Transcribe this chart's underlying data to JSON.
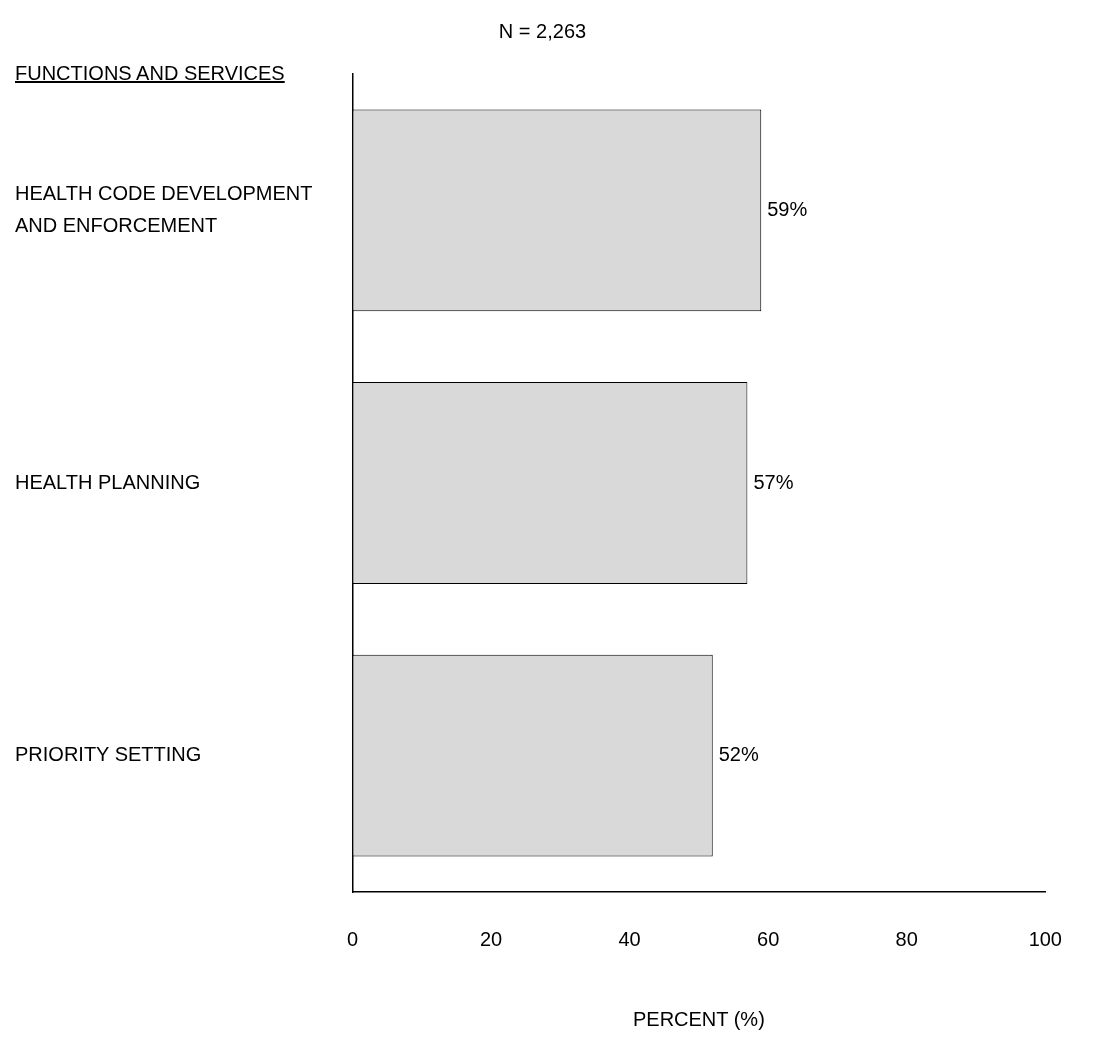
{
  "chart_data": {
    "type": "bar",
    "orientation": "horizontal",
    "title": "N = 2,263",
    "ylabel": "FUNCTIONS AND SERVICES",
    "xlabel": "PERCENT (%)",
    "categories": [
      "HEALTH CODE DEVELOPMENT AND ENFORCEMENT",
      "HEALTH PLANNING",
      "PRIORITY SETTING"
    ],
    "values": [
      59,
      57,
      52
    ],
    "value_labels": [
      "59%",
      "57%",
      "52%"
    ],
    "color": "#d9d9d9",
    "xlim": [
      0,
      100
    ],
    "xticks": [
      0,
      20,
      40,
      60,
      80,
      100
    ],
    "grid": false,
    "legend": false
  }
}
